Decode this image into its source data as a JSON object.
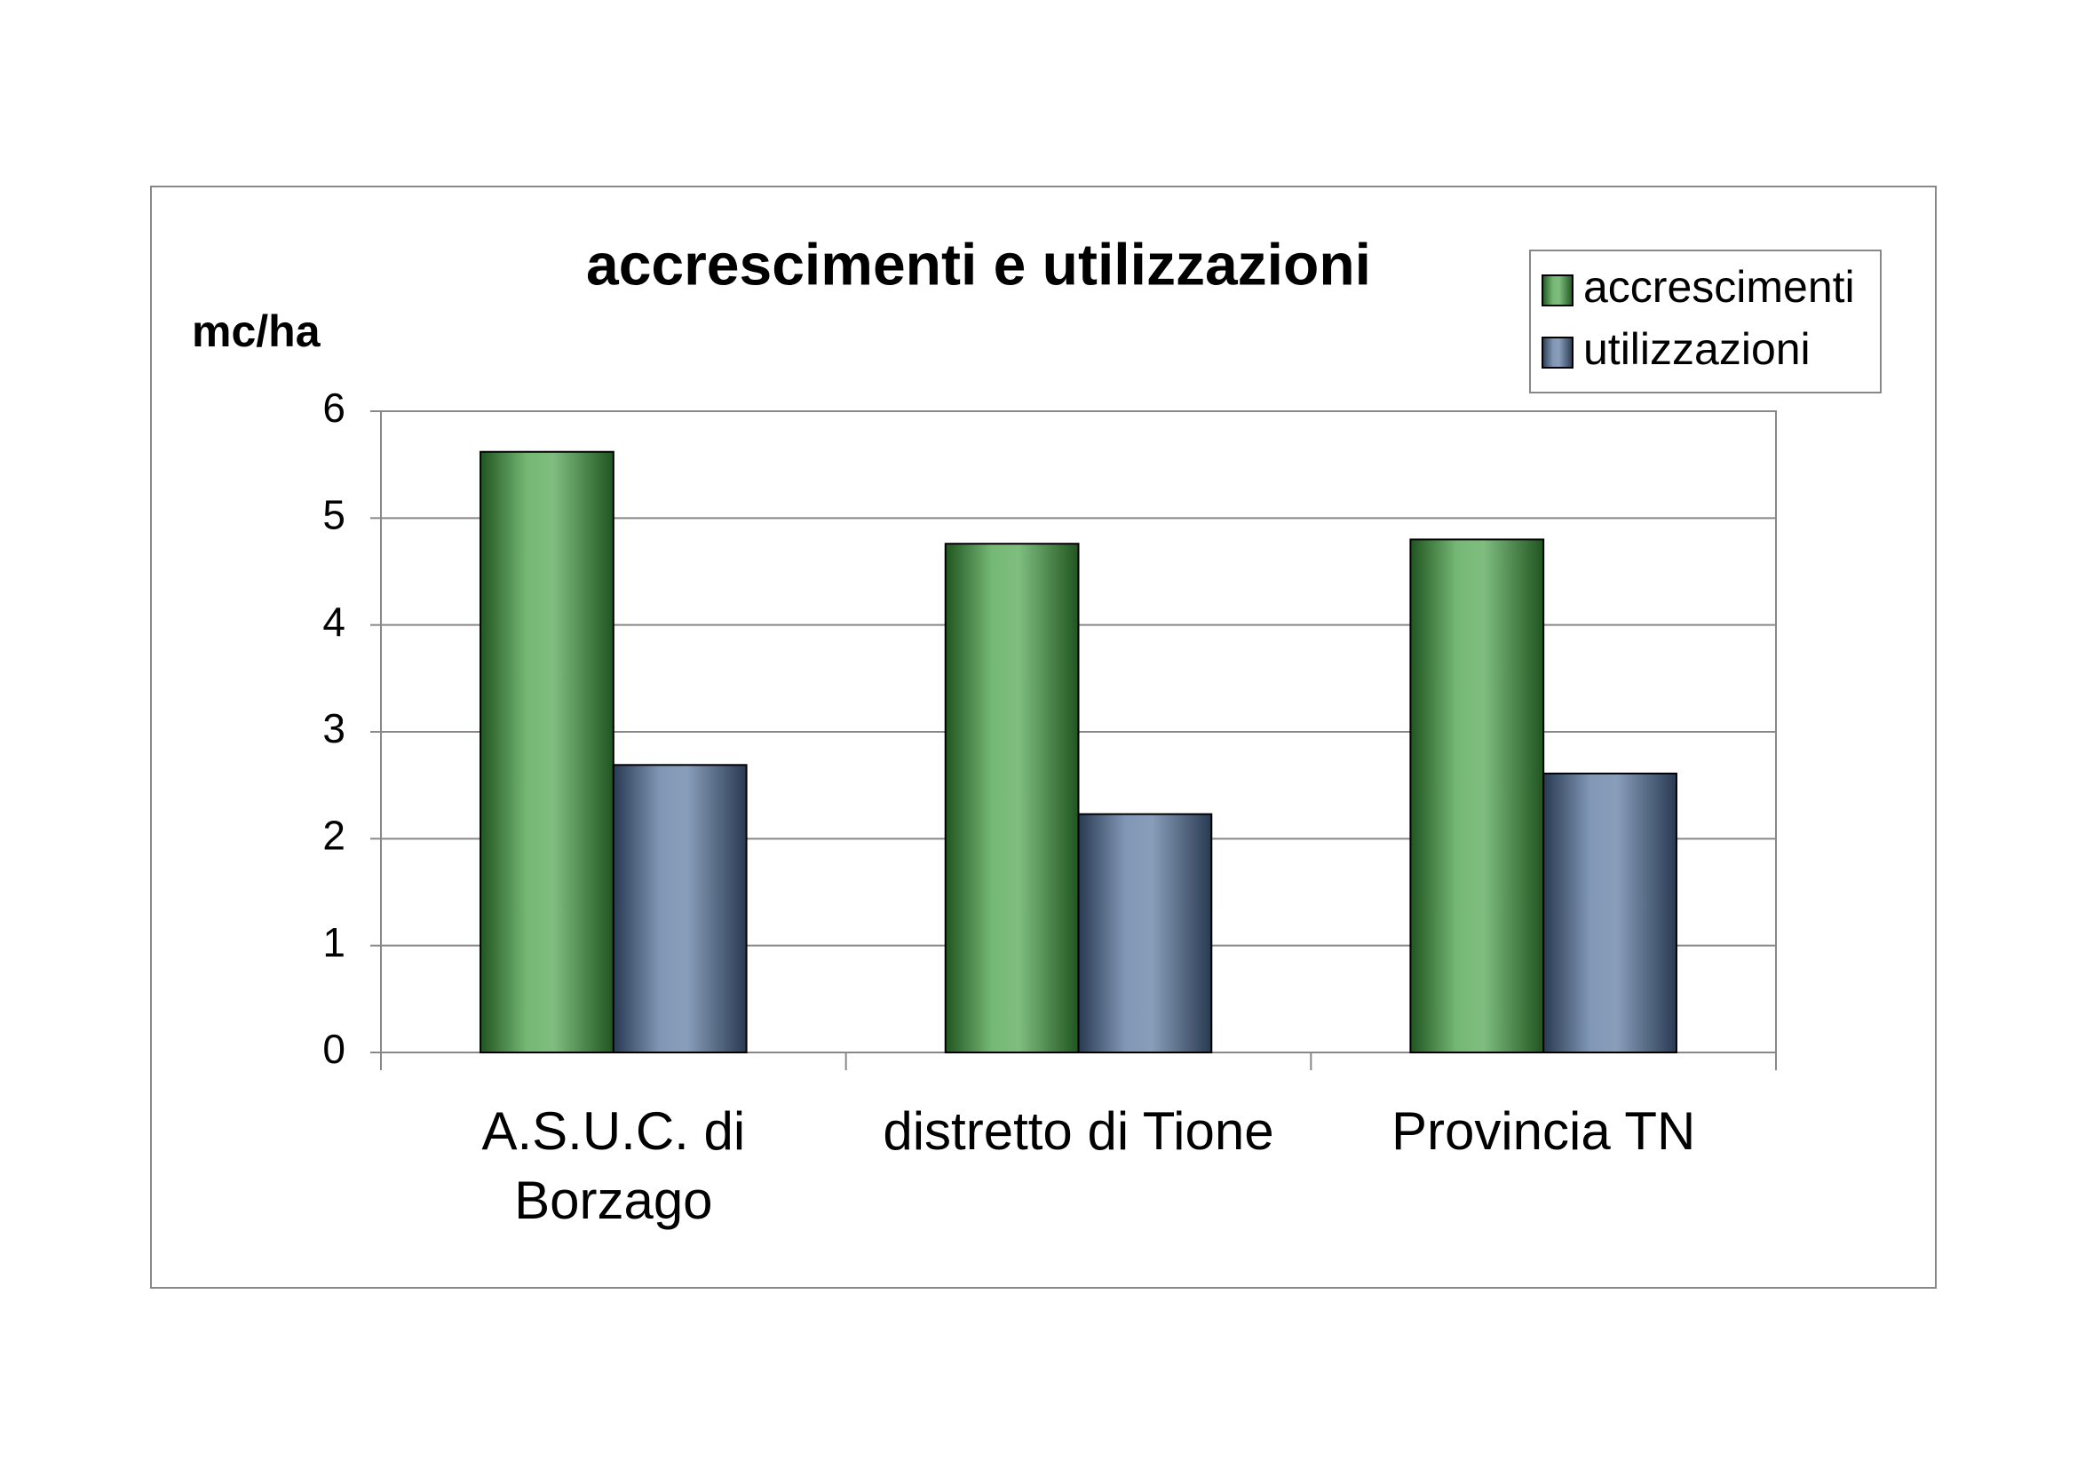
{
  "chart_data": {
    "type": "bar",
    "title": "accrescimenti e utilizzazioni",
    "y_label": "mc/ha",
    "categories": [
      "A.S.U.C. di Borzago",
      "distretto di Tione",
      "Provincia TN"
    ],
    "series": [
      {
        "name": "accrescimenti",
        "color": "#3a9a3a",
        "values": [
          5.62,
          4.76,
          4.8
        ]
      },
      {
        "name": "utilizzazioni",
        "color": "#4a6a95",
        "values": [
          2.69,
          2.23,
          2.61
        ]
      }
    ],
    "ylim": [
      0,
      6
    ],
    "yticks": [
      0,
      1,
      2,
      3,
      4,
      5,
      6
    ],
    "grid": true,
    "legend": "top-right"
  }
}
